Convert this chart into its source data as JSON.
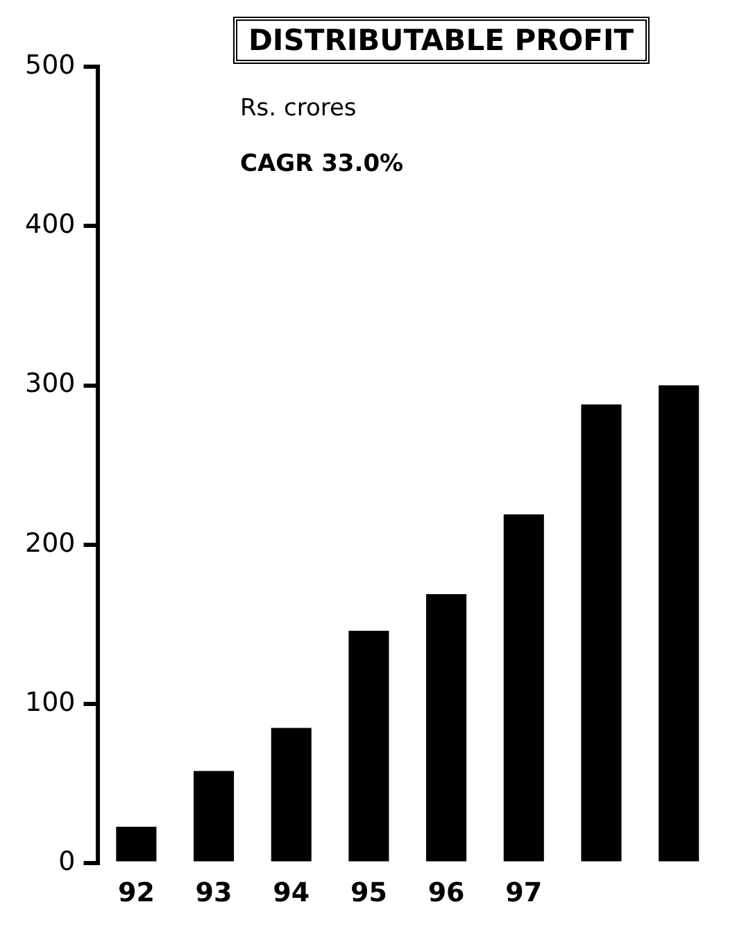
{
  "chart_data": {
    "type": "bar",
    "title": "DISTRIBUTABLE PROFIT",
    "subtitle": "Rs. crores",
    "annotations": [
      "CAGR 33.0%"
    ],
    "categories": [
      "92",
      "93",
      "94",
      "95",
      "96",
      "97",
      null,
      null
    ],
    "series": [
      {
        "color": "#000000",
        "values": [
          23,
          58,
          85,
          146,
          169,
          219,
          288,
          300
        ]
      }
    ],
    "ylim": [
      0,
      500
    ],
    "yticks": [
      0,
      100,
      200,
      300,
      400,
      500
    ],
    "grid": false,
    "legend": false
  }
}
